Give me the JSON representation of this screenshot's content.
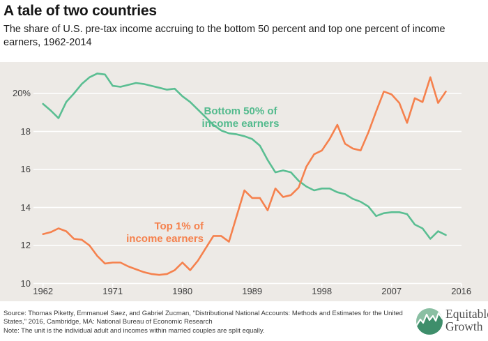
{
  "header": {
    "title": "A tale of two countries",
    "subtitle": "The share of U.S. pre-tax income accruing to the bottom 50 percent and top one percent of income earners, 1962-2014"
  },
  "chart_data": {
    "type": "line",
    "title": "A tale of two countries",
    "xlabel": "",
    "ylabel": "",
    "xlim": [
      1962,
      2016
    ],
    "ylim": [
      10,
      21.6
    ],
    "grid": true,
    "legend_position": "annotations-on-chart",
    "x_tick_labels": [
      "1962",
      "1971",
      "1980",
      "1989",
      "1998",
      "2007",
      "2016"
    ],
    "x_tick_years": [
      1962,
      1971,
      1980,
      1989,
      1998,
      2007,
      2016
    ],
    "y_tick_labels": [
      "20%",
      "18",
      "16",
      "14",
      "12",
      "10"
    ],
    "y_tick_values": [
      20,
      18,
      16,
      14,
      12,
      10
    ],
    "x": [
      1962,
      1963,
      1964,
      1965,
      1966,
      1967,
      1968,
      1969,
      1970,
      1971,
      1972,
      1973,
      1974,
      1975,
      1976,
      1977,
      1978,
      1979,
      1980,
      1981,
      1982,
      1983,
      1984,
      1985,
      1986,
      1987,
      1988,
      1989,
      1990,
      1991,
      1992,
      1993,
      1994,
      1995,
      1996,
      1997,
      1998,
      1999,
      2000,
      2001,
      2002,
      2003,
      2004,
      2005,
      2006,
      2007,
      2008,
      2009,
      2010,
      2011,
      2012,
      2013,
      2014
    ],
    "series": [
      {
        "name": "Bottom 50% of income earners",
        "color": "#5abe92",
        "values": [
          19.45,
          19.1,
          18.7,
          19.55,
          20.0,
          20.5,
          20.85,
          21.05,
          21.0,
          20.4,
          20.35,
          20.45,
          20.55,
          20.5,
          20.4,
          20.3,
          20.2,
          20.25,
          19.85,
          19.55,
          19.15,
          18.75,
          18.35,
          18.05,
          17.9,
          17.85,
          17.75,
          17.6,
          17.25,
          16.5,
          15.85,
          15.95,
          15.85,
          15.4,
          15.1,
          14.9,
          15.0,
          15.0,
          14.8,
          14.7,
          14.45,
          14.3,
          14.05,
          13.55,
          13.7,
          13.75,
          13.75,
          13.65,
          13.1,
          12.9,
          12.35,
          12.75,
          12.55
        ]
      },
      {
        "name": "Top 1% of income earners",
        "color": "#f5814d",
        "values": [
          12.6,
          12.7,
          12.9,
          12.75,
          12.35,
          12.3,
          12.0,
          11.45,
          11.05,
          11.1,
          11.1,
          10.9,
          10.75,
          10.6,
          10.5,
          10.45,
          10.5,
          10.7,
          11.1,
          10.7,
          11.2,
          11.85,
          12.5,
          12.5,
          12.2,
          13.55,
          14.9,
          14.5,
          14.5,
          13.85,
          15.0,
          14.55,
          14.65,
          15.05,
          16.15,
          16.8,
          17.0,
          17.6,
          18.35,
          17.35,
          17.1,
          17.0,
          17.95,
          19.05,
          20.1,
          19.95,
          19.5,
          18.45,
          19.75,
          19.55,
          20.85,
          19.5,
          20.1
        ]
      }
    ],
    "annotations": [
      {
        "lines": [
          "Bottom 50% of",
          "income earners"
        ],
        "color": "#53ba8d",
        "align": "center"
      },
      {
        "lines": [
          "Top 1% of",
          "income earners"
        ],
        "color": "#f5814d",
        "align": "right"
      }
    ]
  },
  "footer": {
    "source": "Source: Thomas Piketty, Emmanuel Saez, and Gabriel Zucman, \"Distributional National Accounts: Methods and Estimates for the United States,\" 2016, Cambridge, MA: National Bureau of Economic Research",
    "note": "Note: The unit is the individual adult and incomes within married couples are split equally.",
    "logo_name": "Equitable Growth"
  }
}
